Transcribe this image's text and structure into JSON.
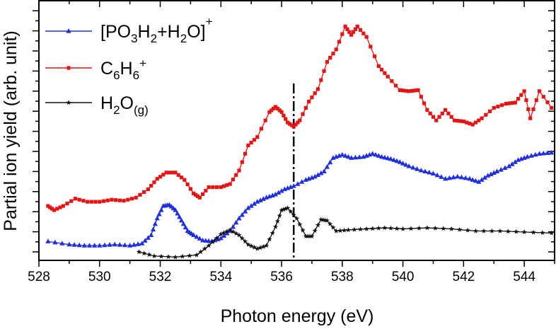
{
  "chart_data": {
    "type": "line",
    "title": "",
    "xlabel": "Photon energy (eV)",
    "ylabel": "Partial ion yield (arb. unit)",
    "xlim": [
      528,
      545
    ],
    "ylim": [
      0,
      12
    ],
    "xticks": [
      528,
      530,
      532,
      534,
      536,
      538,
      540,
      542,
      544
    ],
    "y_tick_labels_shown": false,
    "legend_position": "top-left",
    "vline": {
      "x": 536.4,
      "style": "dash-dot"
    },
    "series": [
      {
        "key": "po3h2_h2o",
        "name": "[PO3H2+H2O]+",
        "legend": {
          "parts": [
            "[PO",
            "3",
            "H",
            "2",
            "+H",
            "2",
            "O]",
            "+"
          ],
          "roles": [
            "t",
            "sub",
            "t",
            "sub",
            "t",
            "sub",
            "t",
            "sup"
          ]
        },
        "color": "#1f2ee0",
        "marker": "triangle",
        "points": [
          [
            528.3,
            0.5
          ],
          [
            529.0,
            0.35
          ],
          [
            529.5,
            0.3
          ],
          [
            530.0,
            0.3
          ],
          [
            530.5,
            0.35
          ],
          [
            531.0,
            0.3
          ],
          [
            531.4,
            0.4
          ],
          [
            531.7,
            0.8
          ],
          [
            531.9,
            1.6
          ],
          [
            532.1,
            2.2
          ],
          [
            532.3,
            2.25
          ],
          [
            532.5,
            2.0
          ],
          [
            532.7,
            1.5
          ],
          [
            532.9,
            1.0
          ],
          [
            533.1,
            0.8
          ],
          [
            533.4,
            0.55
          ],
          [
            533.7,
            0.5
          ],
          [
            534.0,
            0.65
          ],
          [
            534.3,
            1.0
          ],
          [
            534.6,
            1.6
          ],
          [
            534.9,
            2.1
          ],
          [
            535.2,
            2.4
          ],
          [
            535.5,
            2.6
          ],
          [
            535.8,
            2.75
          ],
          [
            536.1,
            3.0
          ],
          [
            536.4,
            3.15
          ],
          [
            536.8,
            3.45
          ],
          [
            537.1,
            3.6
          ],
          [
            537.4,
            3.85
          ],
          [
            537.7,
            4.5
          ],
          [
            538.0,
            4.65
          ],
          [
            538.3,
            4.5
          ],
          [
            538.7,
            4.55
          ],
          [
            539.0,
            4.7
          ],
          [
            539.3,
            4.55
          ],
          [
            539.6,
            4.45
          ],
          [
            539.9,
            4.3
          ],
          [
            540.2,
            4.1
          ],
          [
            540.6,
            3.9
          ],
          [
            541.0,
            3.75
          ],
          [
            541.4,
            3.5
          ],
          [
            541.8,
            3.6
          ],
          [
            542.2,
            3.5
          ],
          [
            542.5,
            3.35
          ],
          [
            542.8,
            3.65
          ],
          [
            543.1,
            3.85
          ],
          [
            543.5,
            4.1
          ],
          [
            543.8,
            4.4
          ],
          [
            544.1,
            4.55
          ],
          [
            544.5,
            4.7
          ],
          [
            544.9,
            4.75
          ]
        ]
      },
      {
        "key": "c6h6",
        "name": "C6H6+",
        "legend": {
          "parts": [
            "C",
            "6",
            "H",
            "6",
            "+"
          ],
          "roles": [
            "t",
            "sub",
            "t",
            "sub",
            "sup"
          ]
        },
        "color": "#e81414",
        "marker": "square",
        "points": [
          [
            528.3,
            2.2
          ],
          [
            528.5,
            2.0
          ],
          [
            528.8,
            2.2
          ],
          [
            529.2,
            2.55
          ],
          [
            529.6,
            2.4
          ],
          [
            530.0,
            2.4
          ],
          [
            530.4,
            2.5
          ],
          [
            530.8,
            2.45
          ],
          [
            531.2,
            2.6
          ],
          [
            531.6,
            3.0
          ],
          [
            531.9,
            3.5
          ],
          [
            532.2,
            3.8
          ],
          [
            532.5,
            3.8
          ],
          [
            532.8,
            3.45
          ],
          [
            533.1,
            2.8
          ],
          [
            533.3,
            2.6
          ],
          [
            533.6,
            3.1
          ],
          [
            534.0,
            3.1
          ],
          [
            534.3,
            3.25
          ],
          [
            534.6,
            3.9
          ],
          [
            534.9,
            5.1
          ],
          [
            535.2,
            5.5
          ],
          [
            535.6,
            6.7
          ],
          [
            535.8,
            6.95
          ],
          [
            536.0,
            6.7
          ],
          [
            536.2,
            6.2
          ],
          [
            536.4,
            6.0
          ],
          [
            536.6,
            6.3
          ],
          [
            536.9,
            7.2
          ],
          [
            537.2,
            7.8
          ],
          [
            537.5,
            9.1
          ],
          [
            537.8,
            9.7
          ],
          [
            538.1,
            10.8
          ],
          [
            538.3,
            10.4
          ],
          [
            538.5,
            10.8
          ],
          [
            538.8,
            10.3
          ],
          [
            539.2,
            8.9
          ],
          [
            539.5,
            8.4
          ],
          [
            539.9,
            7.75
          ],
          [
            540.2,
            7.7
          ],
          [
            540.5,
            7.75
          ],
          [
            540.8,
            6.8
          ],
          [
            541.1,
            6.3
          ],
          [
            541.4,
            6.8
          ],
          [
            541.7,
            6.3
          ],
          [
            542.0,
            6.25
          ],
          [
            542.3,
            6.1
          ],
          [
            542.6,
            6.4
          ],
          [
            543.0,
            6.9
          ],
          [
            543.4,
            7.1
          ],
          [
            543.7,
            7.15
          ],
          [
            544.0,
            7.7
          ],
          [
            544.2,
            6.4
          ],
          [
            544.5,
            7.7
          ],
          [
            544.9,
            6.9
          ]
        ]
      },
      {
        "key": "h2o",
        "name": "H2O(g)",
        "legend": {
          "parts": [
            "H",
            "2",
            "O",
            "(g)"
          ],
          "roles": [
            "t",
            "sub",
            "t",
            "sub"
          ]
        },
        "color": "#111111",
        "marker": "star",
        "points": [
          [
            531.3,
            0.0
          ],
          [
            531.8,
            -0.2
          ],
          [
            532.5,
            -0.25
          ],
          [
            533.2,
            -0.15
          ],
          [
            533.6,
            0.3
          ],
          [
            534.0,
            0.85
          ],
          [
            534.3,
            1.05
          ],
          [
            534.6,
            0.8
          ],
          [
            534.9,
            0.35
          ],
          [
            535.2,
            0.15
          ],
          [
            535.5,
            0.3
          ],
          [
            535.8,
            1.2
          ],
          [
            536.0,
            2.0
          ],
          [
            536.2,
            2.1
          ],
          [
            536.5,
            1.6
          ],
          [
            536.8,
            0.75
          ],
          [
            537.0,
            0.75
          ],
          [
            537.3,
            1.55
          ],
          [
            537.5,
            1.5
          ],
          [
            537.8,
            1.0
          ],
          [
            538.2,
            1.05
          ],
          [
            538.8,
            1.1
          ],
          [
            539.4,
            1.15
          ],
          [
            540.0,
            1.1
          ],
          [
            540.8,
            1.15
          ],
          [
            541.6,
            1.1
          ],
          [
            542.4,
            1.0
          ],
          [
            543.2,
            1.0
          ],
          [
            544.0,
            0.95
          ],
          [
            544.9,
            0.9
          ]
        ]
      }
    ]
  }
}
